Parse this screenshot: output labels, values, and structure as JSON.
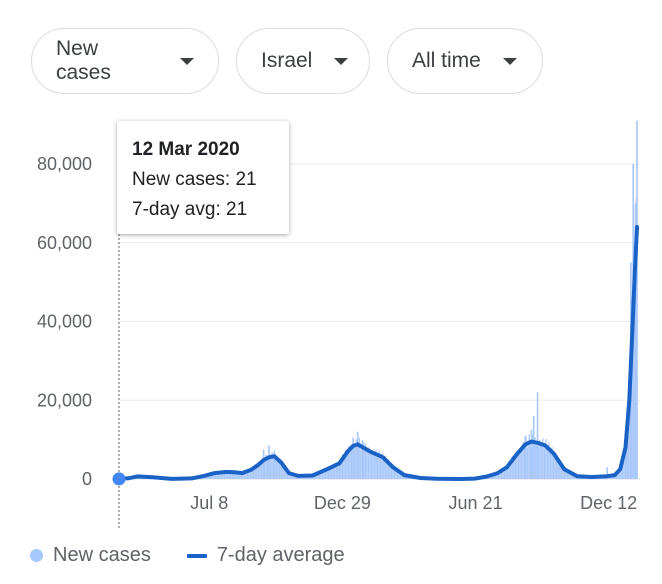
{
  "filters": {
    "metric": "New cases",
    "region": "Israel",
    "range": "All time"
  },
  "tooltip": {
    "date": "12 Mar 2020",
    "cases_line": "New cases: 21",
    "avg_line": "7-day avg: 21"
  },
  "legend": {
    "bars": "New cases",
    "line": "7-day average"
  },
  "colors": {
    "bars": "#a8c7fa",
    "line": "#1a62c6",
    "grid": "#e8eaed"
  },
  "chart_data": {
    "type": "area",
    "title": "",
    "ylim": [
      0,
      92000
    ],
    "yticks": [
      0,
      20000,
      40000,
      60000,
      80000
    ],
    "ytick_labels": [
      "0",
      "20,000",
      "40,000",
      "60,000",
      "80,000"
    ],
    "xlim": [
      "2020-03-12",
      "2022-01-18"
    ],
    "xticks": [
      "2020-07-08",
      "2020-12-29",
      "2021-06-21",
      "2021-12-12"
    ],
    "xtick_labels": [
      "Jul 8",
      "Dec 29",
      "Jun 21",
      "Dec 12"
    ],
    "grid": true,
    "legend_position": "bottom-left",
    "highlight": {
      "date": "2020-03-12",
      "new_cases": 21,
      "avg": 21
    },
    "series": [
      {
        "name": "7-day average",
        "x": [
          "2020-03-12",
          "2020-03-25",
          "2020-04-05",
          "2020-04-25",
          "2020-05-20",
          "2020-06-15",
          "2020-07-01",
          "2020-07-15",
          "2020-07-30",
          "2020-08-10",
          "2020-08-20",
          "2020-09-01",
          "2020-09-10",
          "2020-09-17",
          "2020-09-24",
          "2020-10-01",
          "2020-10-10",
          "2020-10-20",
          "2020-11-01",
          "2020-11-20",
          "2020-12-10",
          "2020-12-25",
          "2021-01-05",
          "2021-01-12",
          "2021-01-18",
          "2021-01-25",
          "2021-02-05",
          "2021-02-20",
          "2021-03-05",
          "2021-03-20",
          "2021-04-10",
          "2021-05-01",
          "2021-06-01",
          "2021-06-20",
          "2021-07-05",
          "2021-07-20",
          "2021-08-01",
          "2021-08-15",
          "2021-08-25",
          "2021-09-02",
          "2021-09-10",
          "2021-09-20",
          "2021-10-01",
          "2021-10-15",
          "2021-11-01",
          "2021-11-20",
          "2021-12-10",
          "2021-12-20",
          "2021-12-27",
          "2022-01-03",
          "2022-01-08",
          "2022-01-12",
          "2022-01-15",
          "2022-01-18"
        ],
        "values": [
          21,
          200,
          650,
          450,
          30,
          150,
          800,
          1500,
          1800,
          1700,
          1500,
          2400,
          3600,
          4800,
          5500,
          5800,
          4200,
          1500,
          800,
          900,
          2600,
          4000,
          7000,
          8400,
          8800,
          8000,
          6800,
          5500,
          3000,
          1000,
          250,
          50,
          10,
          100,
          600,
          1500,
          3000,
          6500,
          8800,
          9500,
          9200,
          8500,
          6500,
          2500,
          700,
          500,
          700,
          1000,
          2500,
          8000,
          20000,
          38000,
          52000,
          64000
        ]
      },
      {
        "name": "New cases",
        "x": [
          "2020-09-17",
          "2020-09-24",
          "2020-10-01",
          "2021-01-12",
          "2021-01-18",
          "2021-01-25",
          "2021-08-25",
          "2021-09-02",
          "2021-09-05",
          "2021-09-10",
          "2021-12-10",
          "2022-01-05",
          "2022-01-10",
          "2022-01-13",
          "2022-01-16",
          "2022-01-18"
        ],
        "values": [
          7500,
          8500,
          7200,
          10500,
          12000,
          9500,
          11000,
          12500,
          16000,
          22000,
          3000,
          15000,
          55000,
          80000,
          70000,
          91000
        ]
      }
    ]
  }
}
